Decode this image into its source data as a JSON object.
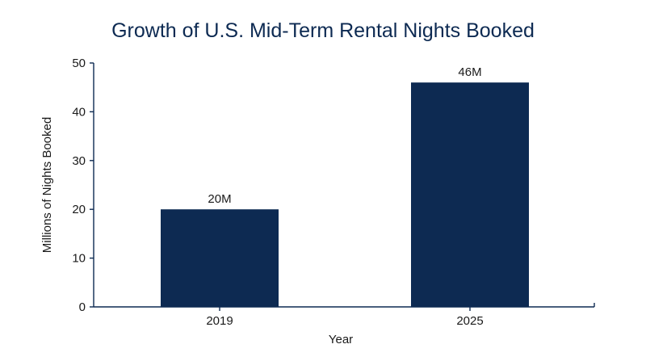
{
  "chart_data": {
    "type": "bar",
    "title": "Growth of U.S. Mid-Term Rental Nights Booked",
    "xlabel": "Year",
    "ylabel": "Millions of Nights Booked",
    "categories": [
      "2019",
      "2025"
    ],
    "values": [
      20,
      46
    ],
    "data_labels": [
      "20M",
      "46M"
    ],
    "ylim": [
      0,
      50
    ],
    "yticks": [
      0,
      10,
      20,
      30,
      40,
      50
    ],
    "grid": false,
    "legend": "none",
    "bar_color": "#0d2a52",
    "axis_color": "#0d2a52",
    "title_color": "#0d2a52"
  }
}
